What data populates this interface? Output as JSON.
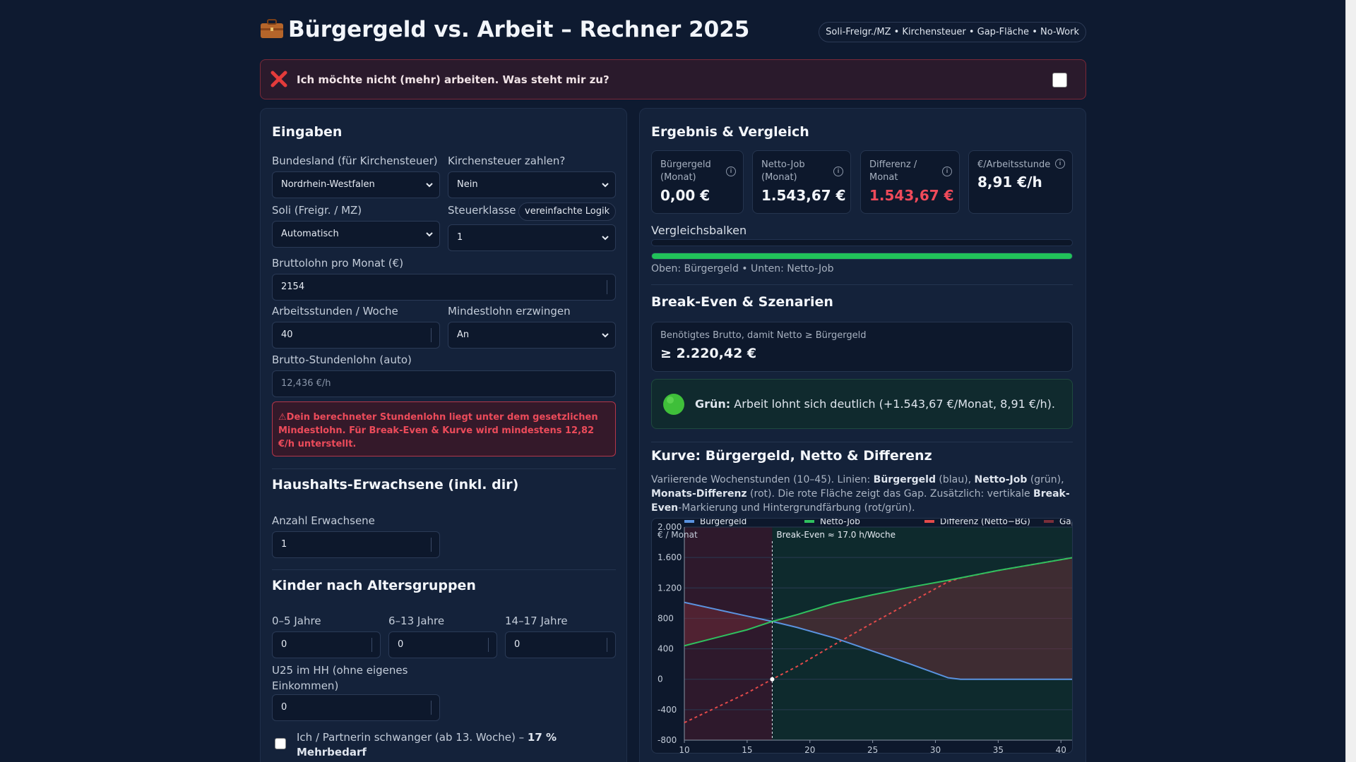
{
  "header": {
    "icon": "briefcase-icon",
    "title": "Bürgergeld vs. Arbeit – Rechner 2025",
    "feature_pill": "Soli-Freigr./MZ • Kirchensteuer • Gap-Fläche • No-Work"
  },
  "nowork": {
    "icon": "cross-icon",
    "label": "Ich möchte nicht (mehr) arbeiten. Was steht mir zu?",
    "checked": false
  },
  "inputs": {
    "title": "Eingaben",
    "bundesland": {
      "label": "Bundesland (für Kirchensteuer)",
      "value": "Nordrhein-Westfalen"
    },
    "kirchensteuer": {
      "label": "Kirchensteuer zahlen?",
      "value": "Nein"
    },
    "soli": {
      "label": "Soli (Freigr. / MZ)",
      "value": "Automatisch"
    },
    "steuerklasse": {
      "label": "Steuerklasse",
      "badge": "vereinfachte Logik",
      "value": "1"
    },
    "brutto": {
      "label": "Bruttolohn pro Monat (€)",
      "value": "2154"
    },
    "stunden": {
      "label": "Arbeitsstunden / Woche",
      "value": "40"
    },
    "mindestlohn": {
      "label": "Mindestlohn erzwingen",
      "value": "An"
    },
    "stundenlohn": {
      "label": "Brutto-Stundenlohn (auto)",
      "placeholder": "12,436 €/h"
    },
    "warning": "⚠Dein berechneter Stundenlohn liegt unter dem gesetzlichen Mindestlohn. Für Break-Even & Kurve wird mindestens 12,82 €/h unterstellt."
  },
  "household": {
    "title": "Haushalts-Erwachsene (inkl. dir)",
    "adults_label": "Anzahl Erwachsene",
    "adults_value": "1"
  },
  "kids": {
    "title": "Kinder nach Altersgruppen",
    "g1_label": "0–5 Jahre",
    "g1_value": "0",
    "g2_label": "6–13 Jahre",
    "g2_value": "0",
    "g3_label": "14–17 Jahre",
    "g3_value": "0",
    "u25_label_1": "U25 im HH (ohne eigenes",
    "u25_label_2": "Einkommen)",
    "u25_value": "0",
    "pregnant_text": "Ich / Partnerin schwanger (ab 13. Woche) –",
    "pregnant_bold_1": "17 %",
    "pregnant_bold_2": "Mehrbedarf"
  },
  "result": {
    "title": "Ergebnis & Vergleich",
    "kpis": [
      {
        "label_1": "Bürgergeld",
        "label_2": "(Monat)",
        "value": "0,00 €"
      },
      {
        "label_1": "Netto-Job",
        "label_2": "(Monat)",
        "value": "1.543,67 €"
      },
      {
        "label_1": "Differenz /",
        "label_2": "Monat",
        "value": "1.543,67 €"
      },
      {
        "label_1": "€/Arbeitsstunde",
        "label_2": "",
        "value": "8,91 €/h"
      }
    ],
    "info_glyph": "i",
    "bars_title": "Vergleichsbalken",
    "bar_buergergeld_fraction": 0.0,
    "bar_netto_fraction": 1.0,
    "bars_caption": "Oben: Bürgergeld • Unten: Netto-Job"
  },
  "breakeven": {
    "title": "Break-Even & Szenarien",
    "label": "Benötigtes Brutto, damit Netto ≥ Bürgergeld",
    "value": "≥ 2.220,42 €",
    "status_icon": "green-circle-icon",
    "status_bold": "Grün:",
    "status_text": "Arbeit lohnt sich deutlich (+1.543,67 €/Monat, 8,91 €/h)."
  },
  "curve": {
    "title": "Kurve: Bürgergeld, Netto & Differenz",
    "desc_1": "Variierende Wochenstunden (10–45). Linien: ",
    "desc_b1": "Bürgergeld",
    "desc_2": " (blau), ",
    "desc_b2": "Netto-Job",
    "desc_3": " (grün), ",
    "desc_b3": "Monats-Differenz",
    "desc_4": " (rot). Die rote Fläche zeigt das Gap. Zusätzlich: vertikale ",
    "desc_b4": "Break-Even",
    "desc_5": "-Markierung und Hintergrundfärbung (rot/grün)."
  },
  "chart_data": {
    "type": "line",
    "xlabel": "Stunden/Woche",
    "ylabel": "€ / Monat",
    "xlim": [
      10,
      41
    ],
    "ylim": [
      -800,
      2000
    ],
    "x_ticks": [
      10,
      15,
      20,
      25,
      30,
      35,
      40
    ],
    "y_ticks": [
      -800,
      -400,
      0,
      400,
      800,
      1200,
      1600,
      2000
    ],
    "y_tick_labels": [
      "-800",
      "-400",
      "0",
      "400",
      "800",
      "1.200",
      "1.600",
      "2.000"
    ],
    "break_even_x": 17,
    "break_even_label": "Break-Even ≈ 17.0 h/Woche",
    "legend": [
      "Bürgergeld",
      "Netto-Job",
      "Differenz (Netto−BG)",
      "Gap"
    ],
    "colors": {
      "buergergeld": "#5b93e0",
      "netto": "#2fc15f",
      "differenz": "#e34a4a",
      "gap": "#7a2e3a"
    },
    "series": [
      {
        "name": "Bürgergeld",
        "x": [
          10,
          15,
          17,
          19,
          22,
          25,
          28,
          31,
          32,
          41
        ],
        "y": [
          1010,
          830,
          760,
          680,
          540,
          370,
          200,
          20,
          0,
          0
        ]
      },
      {
        "name": "Netto-Job",
        "x": [
          10,
          15,
          17,
          19,
          22,
          25,
          28,
          31,
          35,
          41
        ],
        "y": [
          440,
          650,
          760,
          850,
          1000,
          1110,
          1210,
          1300,
          1430,
          1600
        ]
      },
      {
        "name": "Differenz (Netto−BG)",
        "x": [
          10,
          15,
          17,
          19,
          22,
          25,
          28,
          31,
          32,
          35,
          41
        ],
        "y": [
          -570,
          -180,
          0,
          170,
          460,
          740,
          1010,
          1280,
          1330,
          1430,
          1600
        ]
      }
    ]
  }
}
